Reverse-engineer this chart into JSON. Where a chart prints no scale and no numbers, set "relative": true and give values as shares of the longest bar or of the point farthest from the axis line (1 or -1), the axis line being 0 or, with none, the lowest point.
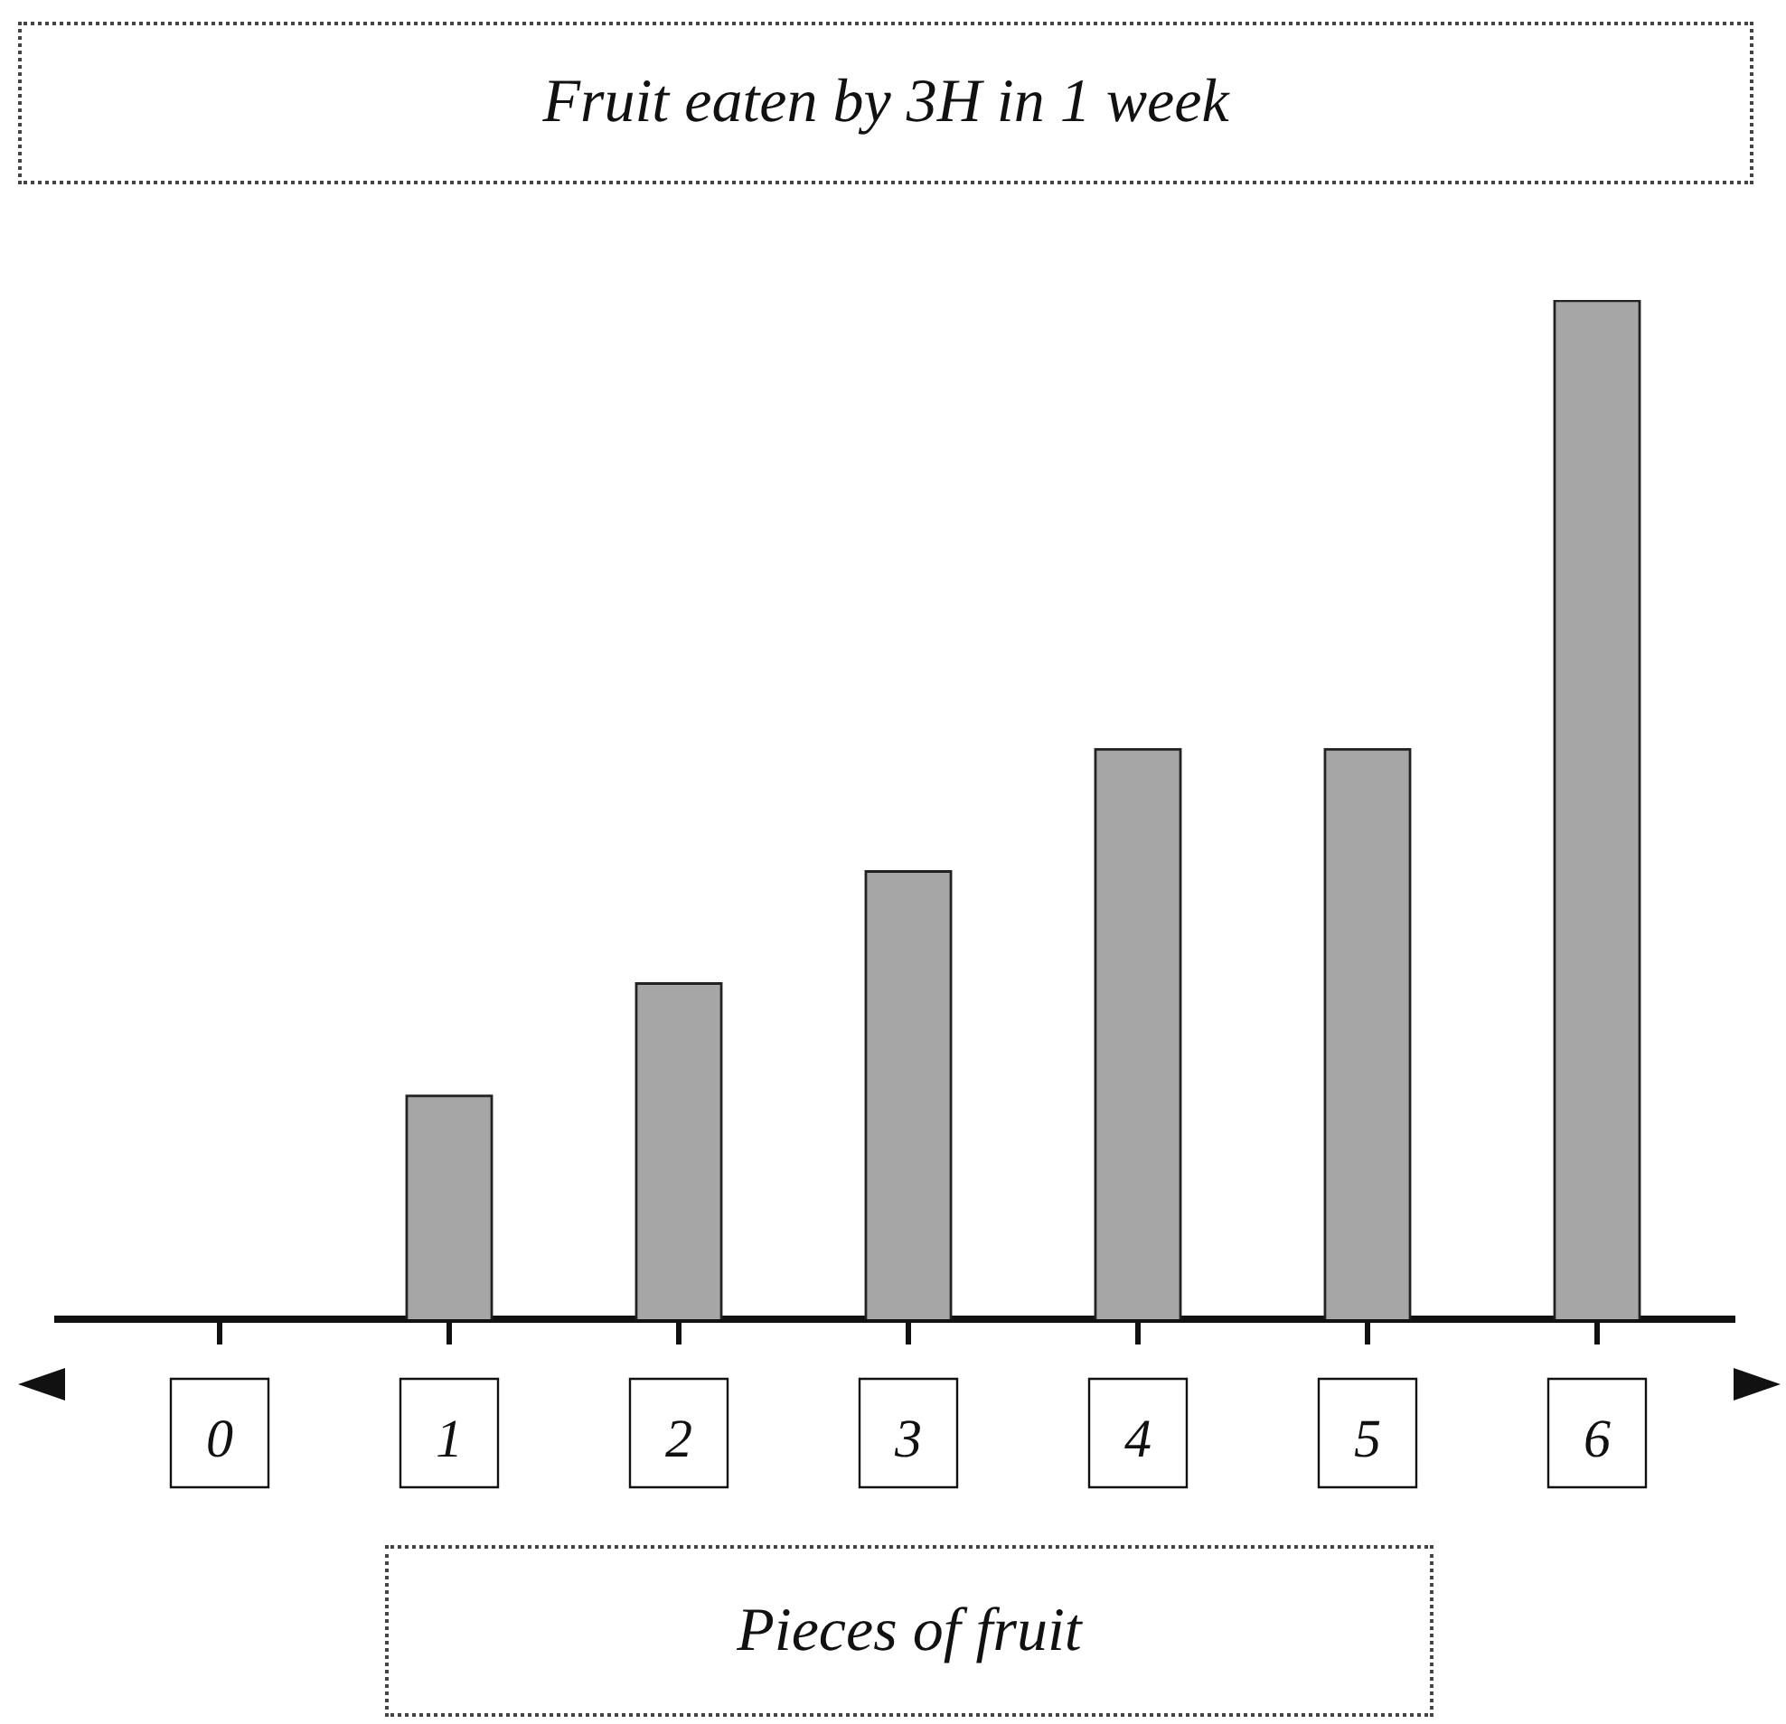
{
  "chart_data": {
    "type": "bar",
    "title": "Fruit eaten by 3H in 1 week",
    "xlabel": "Pieces of fruit",
    "categories": [
      "0",
      "1",
      "2",
      "3",
      "4",
      "5",
      "6"
    ],
    "values": [
      0,
      0.22,
      0.33,
      0.44,
      0.56,
      0.56,
      1
    ],
    "color": "#a6a6a6",
    "relative": true
  }
}
